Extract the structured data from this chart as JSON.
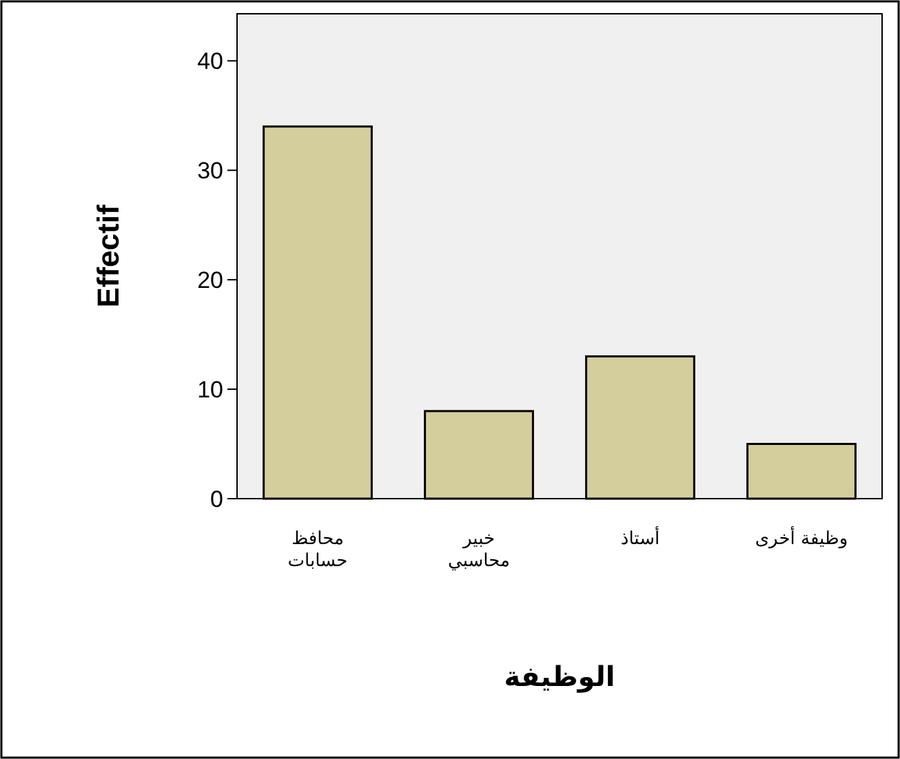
{
  "chart_data": {
    "type": "bar",
    "xlabel": "الوظيفة",
    "ylabel": "Effectif",
    "categories": [
      "محافظ حسابات",
      "خبير محاسبي",
      "أستاذ",
      "وظيفة أخرى"
    ],
    "values": [
      34,
      8,
      13,
      5
    ],
    "color": "#d3ce9c",
    "ylim": [
      0,
      44.3
    ],
    "yticks": [
      0,
      10,
      20,
      30,
      40
    ],
    "grid": false
  }
}
